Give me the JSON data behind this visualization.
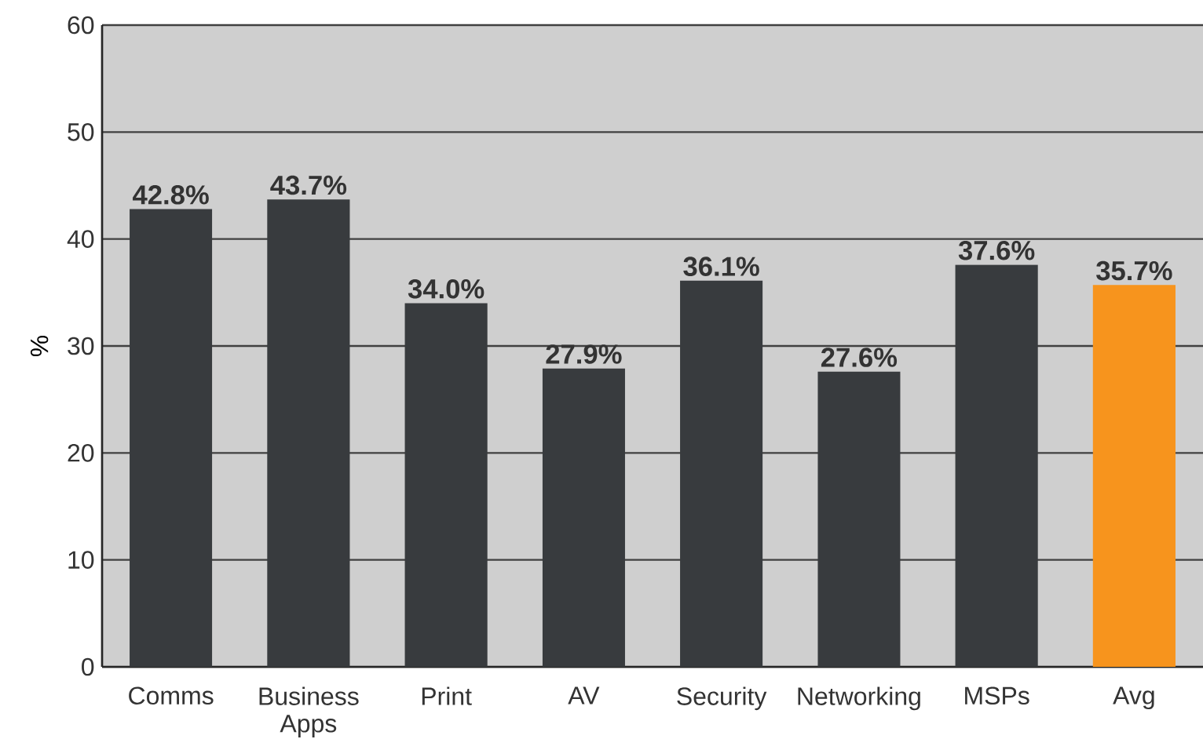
{
  "chart_data": {
    "type": "bar",
    "ylabel": "%",
    "categories": [
      "Comms",
      "Business Apps",
      "Print",
      "AV",
      "Security",
      "Networking",
      "MSPs",
      "Avg"
    ],
    "values": [
      42.8,
      43.7,
      34.0,
      27.9,
      36.1,
      27.6,
      37.6,
      35.7
    ],
    "colors": [
      "#383b3e",
      "#383b3e",
      "#383b3e",
      "#383b3e",
      "#383b3e",
      "#383b3e",
      "#383b3e",
      "#f7941d"
    ],
    "value_labels": [
      "42.8%",
      "43.7%",
      "34.0%",
      "27.9%",
      "36.1%",
      "27.6%",
      "37.6%",
      "35.7%"
    ],
    "ylim": [
      0,
      60
    ],
    "yticks": [
      0,
      10,
      20,
      30,
      40,
      50,
      60
    ],
    "grid": "y"
  }
}
